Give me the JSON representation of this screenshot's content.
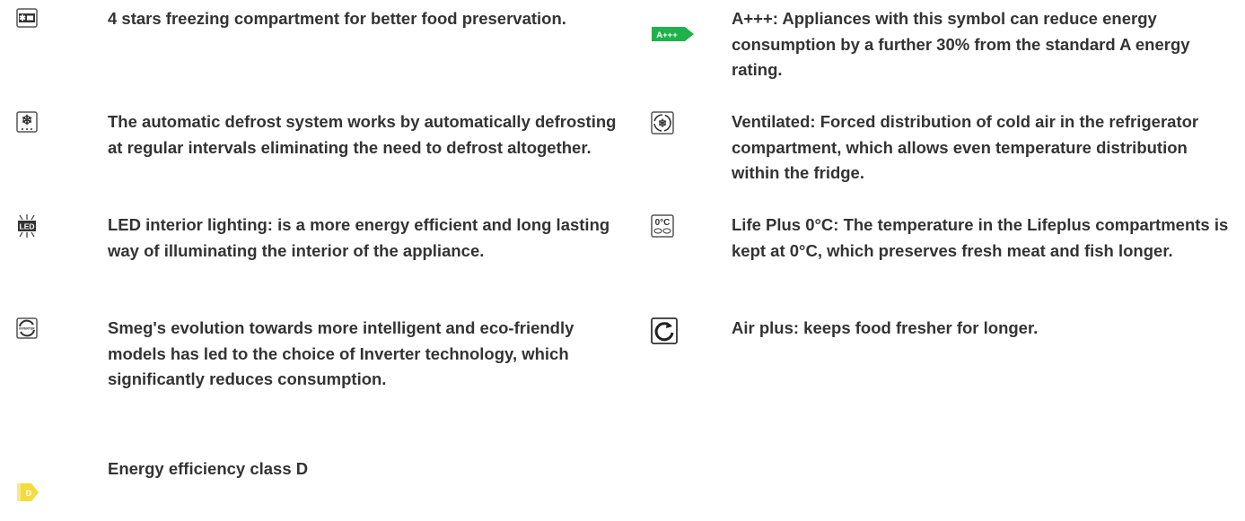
{
  "features": [
    {
      "text": "4 stars freezing compartment for better food preservation."
    },
    {
      "text": "The automatic defrost system works by automatically defrosting at regular intervals eliminating the need to defrost altogether."
    },
    {
      "text": "LED interior lighting: is a more energy efficient and long lasting way of illuminating the interior of the appliance.",
      "icon_label": "LED"
    },
    {
      "text": "Smeg's evolution towards more intelligent and eco-friendly models has led to the choice of Inverter technology, which significantly reduces consumption.",
      "icon_label": "INVERTER"
    },
    {
      "text": "Energy efficiency class D",
      "icon_label": "D"
    },
    {
      "text": "A+++: Appliances with this symbol can reduce energy consumption by a further 30% from the standard A energy rating.",
      "icon_label": "A+++"
    },
    {
      "text": "Ventilated: Forced distribution of cold air in the refrigerator compartment, which allows even temperature distribution within the fridge."
    },
    {
      "text": "Life Plus 0°C: The temperature in the Lifeplus compartments is kept at 0°C, which preserves fresh meat and fish longer.",
      "icon_label": "0°C"
    },
    {
      "text": "Air plus: keeps food fresher for longer."
    }
  ]
}
